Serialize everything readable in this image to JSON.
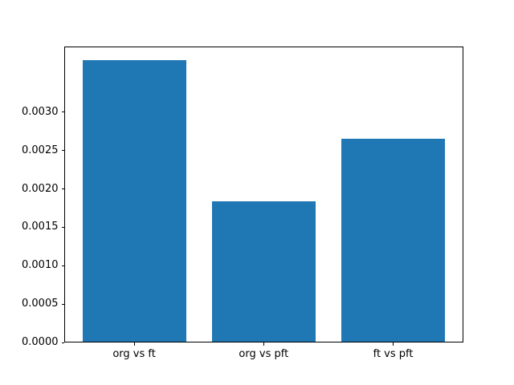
{
  "figure": {
    "background": "#ffffff",
    "spine_color": "#000000",
    "tick_color": "#000000",
    "label_color": "#000000"
  },
  "chart_data": {
    "type": "bar",
    "title": "",
    "xlabel": "",
    "ylabel": "",
    "categories": [
      "org vs ft",
      "org vs pft",
      "ft vs pft"
    ],
    "values": [
      0.00368,
      0.00184,
      0.00265
    ],
    "bar_color": "#1f77b4",
    "bar_width": 0.8,
    "xlim": [
      -0.54,
      2.54
    ],
    "ylim": [
      0,
      0.003858
    ],
    "grid": false,
    "legend": null,
    "y_ticks": [
      {
        "value": 0.0,
        "label": "0.0000"
      },
      {
        "value": 0.0005,
        "label": "0.0005"
      },
      {
        "value": 0.001,
        "label": "0.0010"
      },
      {
        "value": 0.0015,
        "label": "0.0015"
      },
      {
        "value": 0.002,
        "label": "0.0020"
      },
      {
        "value": 0.0025,
        "label": "0.0025"
      },
      {
        "value": 0.003,
        "label": "0.0030"
      }
    ]
  }
}
